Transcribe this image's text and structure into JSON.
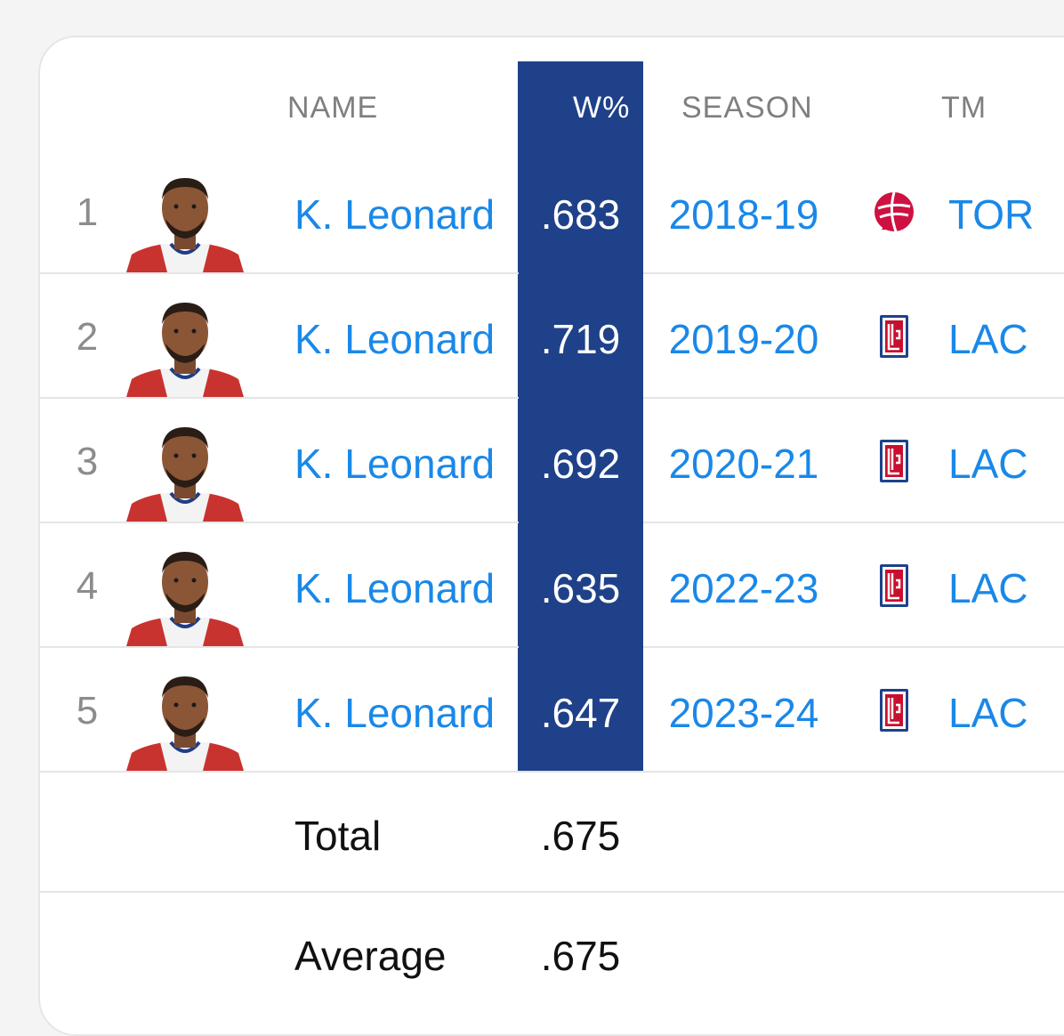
{
  "table": {
    "headers": {
      "name": "NAME",
      "wp": "W%",
      "season": "SEASON",
      "team": "TM"
    },
    "rows": [
      {
        "rank": "1",
        "name": "K. Leonard",
        "wp": ".683",
        "season": "2018-19",
        "team": "TOR",
        "team_logo": "raptors-logo-icon"
      },
      {
        "rank": "2",
        "name": "K. Leonard",
        "wp": ".719",
        "season": "2019-20",
        "team": "LAC",
        "team_logo": "clippers-logo-icon"
      },
      {
        "rank": "3",
        "name": "K. Leonard",
        "wp": ".692",
        "season": "2020-21",
        "team": "LAC",
        "team_logo": "clippers-logo-icon"
      },
      {
        "rank": "4",
        "name": "K. Leonard",
        "wp": ".635",
        "season": "2022-23",
        "team": "LAC",
        "team_logo": "clippers-logo-icon"
      },
      {
        "rank": "5",
        "name": "K. Leonard",
        "wp": ".647",
        "season": "2023-24",
        "team": "LAC",
        "team_logo": "clippers-logo-icon"
      }
    ],
    "footer": [
      {
        "label": "Total",
        "value": ".675"
      },
      {
        "label": "Average",
        "value": ".675"
      }
    ]
  },
  "colors": {
    "highlight_column": "#1f4189",
    "link": "#1a88e8",
    "muted": "#8c8c8c"
  }
}
